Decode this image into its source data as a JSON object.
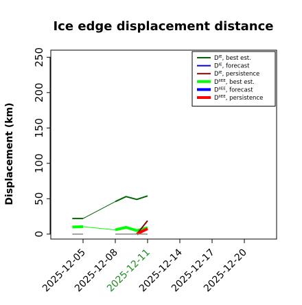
{
  "chart_data": {
    "type": "line",
    "title": "Ice edge displacement distance",
    "ylabel": "Displacement (km)",
    "xlabel": "",
    "ylim": [
      -7,
      260
    ],
    "y_ticks": [
      0,
      50,
      100,
      150,
      200,
      250
    ],
    "x_range": [
      "2025-12-02",
      "2025-12-23"
    ],
    "x_ticks": [
      {
        "date": "2025-12-05",
        "label": "2025-12-05",
        "color": "#000000"
      },
      {
        "date": "2025-12-08",
        "label": "2025-12-08",
        "color": "#000000"
      },
      {
        "date": "2025-12-11",
        "label": "2025-12-11",
        "color": "#228B22"
      },
      {
        "date": "2025-12-14",
        "label": "2025-12-14",
        "color": "#000000"
      },
      {
        "date": "2025-12-17",
        "label": "2025-12-17",
        "color": "#000000"
      },
      {
        "date": "2025-12-20",
        "label": "2025-12-20",
        "color": "#000000"
      }
    ],
    "grid": false,
    "legend_position": "top-right",
    "legend": [
      {
        "label": "D^IE, best est.",
        "base": "D",
        "sup": "IE",
        "rest": ", best est.",
        "color": "#006400",
        "width": 2
      },
      {
        "label": "D^IE, forecast",
        "base": "D",
        "sup": "IE",
        "rest": ", forecast",
        "color": "#0000CD",
        "width": 2
      },
      {
        "label": "D^IE, persistence",
        "base": "D",
        "sup": "IE",
        "rest": ", persistence",
        "color": "#8B0000",
        "width": 2
      },
      {
        "label": "D^IIEE, best est.",
        "base": "D",
        "sup": "IIEE",
        "rest": ", best est.",
        "color": "#00FF00",
        "width": 4
      },
      {
        "label": "D^IIEE, forecast",
        "base": "D",
        "sup": "IIEE",
        "rest": ", forecast",
        "color": "#0000FF",
        "width": 4
      },
      {
        "label": "D^IIEE, persistence",
        "base": "D",
        "sup": "IIEE",
        "rest": ", persistence",
        "color": "#FF0000",
        "width": 4
      }
    ],
    "series": [
      {
        "color": "#006400",
        "width": 2,
        "points": [
          [
            "2025-12-04",
            22
          ],
          [
            "2025-12-05",
            22
          ]
        ]
      },
      {
        "color": "#006400",
        "width": 1,
        "points": [
          [
            "2025-12-05",
            22
          ],
          [
            "2025-12-08",
            46
          ]
        ]
      },
      {
        "color": "#006400",
        "width": 2,
        "points": [
          [
            "2025-12-08",
            46
          ],
          [
            "2025-12-09",
            53
          ],
          [
            "2025-12-10",
            49
          ],
          [
            "2025-12-11",
            54
          ]
        ]
      },
      {
        "color": "#00FF00",
        "width": 4,
        "points": [
          [
            "2025-12-04",
            10
          ],
          [
            "2025-12-05",
            10.5
          ]
        ]
      },
      {
        "color": "#00FF00",
        "width": 1,
        "points": [
          [
            "2025-12-05",
            10.5
          ],
          [
            "2025-12-08",
            6
          ]
        ]
      },
      {
        "color": "#00FF00",
        "width": 4,
        "points": [
          [
            "2025-12-08",
            6
          ],
          [
            "2025-12-09",
            9.5
          ],
          [
            "2025-12-10",
            5
          ],
          [
            "2025-12-11",
            9
          ]
        ]
      },
      {
        "color": "#8B0000",
        "width": 2,
        "points": [
          [
            "2025-12-10",
            0
          ],
          [
            "2025-12-11",
            19
          ]
        ]
      },
      {
        "color": "#FF0000",
        "width": 4,
        "points": [
          [
            "2025-12-10",
            0
          ],
          [
            "2025-12-10.5",
            4
          ],
          [
            "2025-12-11",
            7.5
          ]
        ]
      },
      {
        "color": "#888888",
        "width": 1.5,
        "points": [
          [
            "2025-12-04",
            0
          ],
          [
            "2025-12-05",
            0
          ]
        ]
      },
      {
        "color": "#888888",
        "width": 1.5,
        "points": [
          [
            "2025-12-08",
            0
          ],
          [
            "2025-12-11",
            0
          ]
        ]
      }
    ]
  }
}
